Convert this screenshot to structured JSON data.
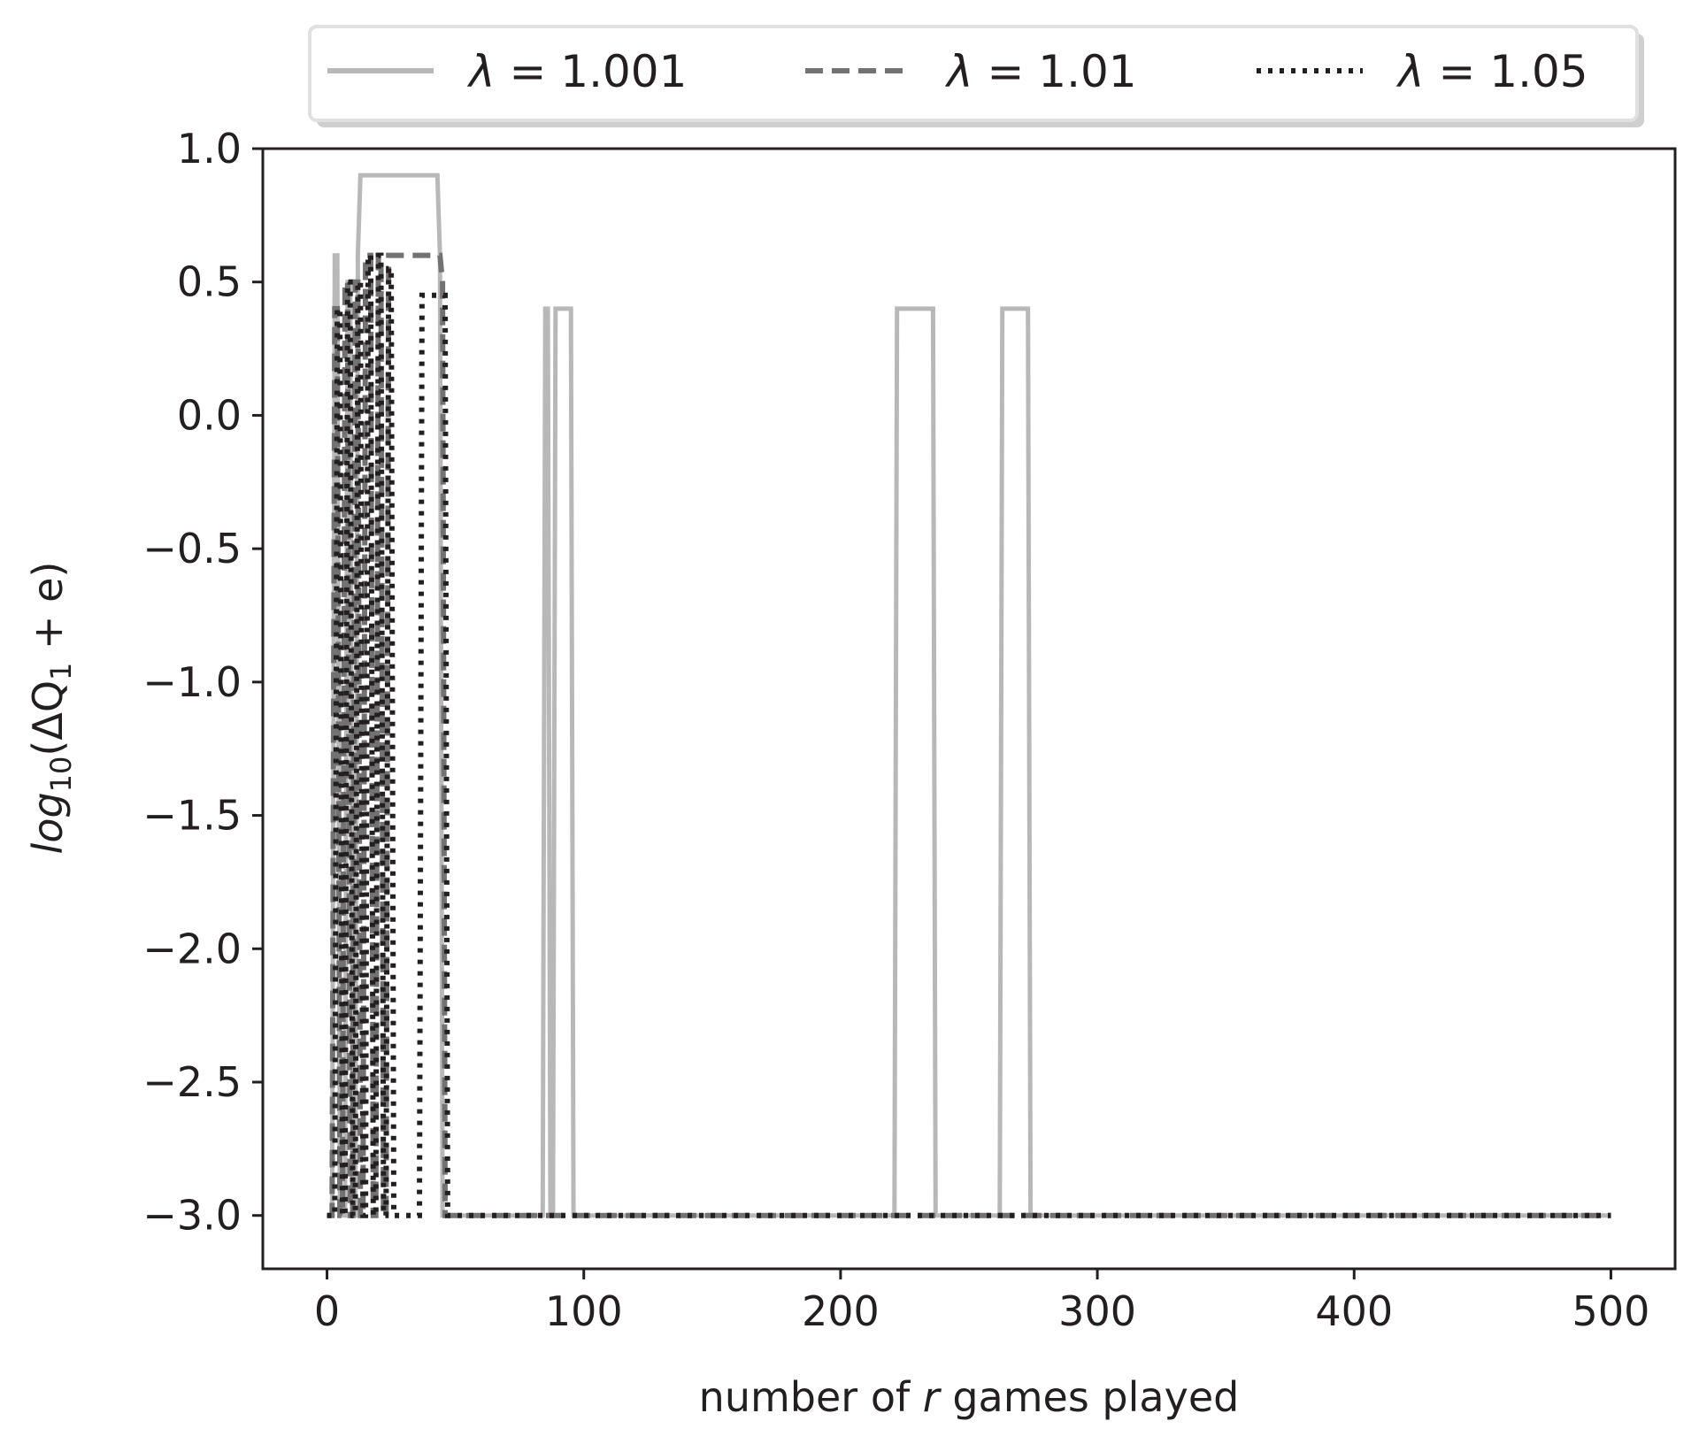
{
  "chart_data": {
    "type": "line",
    "xlabel": {
      "prefix": "number of ",
      "var": "r",
      "suffix": " games played"
    },
    "ylabel": {
      "fn": "log",
      "sub": "10",
      "open": "(ΔQ",
      "sub2": "1",
      "rest": " + e)"
    },
    "xlim": [
      -25,
      525
    ],
    "ylim": [
      -3.2,
      1.0
    ],
    "xticks": [
      0,
      100,
      200,
      300,
      400,
      500
    ],
    "xtick_labels": [
      "0",
      "100",
      "200",
      "300",
      "400",
      "500"
    ],
    "yticks": [
      1.0,
      0.5,
      0.0,
      -0.5,
      -1.0,
      -1.5,
      -2.0,
      -2.5,
      -3.0
    ],
    "ytick_labels": [
      "1.0",
      "0.5",
      "0.0",
      "−0.5",
      "−1.0",
      "−1.5",
      "−2.0",
      "−2.5",
      "−3.0"
    ],
    "grid": false,
    "legend_position": "top, outside plot",
    "series": [
      {
        "name": "λ = 1.001",
        "label_sym": "λ",
        "label_val": " = 1.001",
        "color": "#b8b8b8",
        "style": "solid",
        "x": [
          0,
          2,
          3,
          4,
          5,
          7,
          8,
          9,
          10,
          11,
          12,
          13,
          43,
          44,
          45,
          46,
          84,
          85,
          86,
          87,
          88,
          89,
          90,
          91,
          95,
          96,
          221,
          222,
          236,
          237,
          262,
          263,
          273,
          274,
          500
        ],
        "y": [
          -3.0,
          -3.0,
          0.6,
          0.6,
          -3.0,
          -3.0,
          0.5,
          0.5,
          -3.0,
          -3.0,
          0.6,
          0.9,
          0.9,
          0.6,
          -3.0,
          -3.0,
          -3.0,
          0.4,
          0.4,
          -3.0,
          -3.0,
          0.4,
          0.4,
          0.4,
          0.4,
          -3.0,
          -3.0,
          0.4,
          0.4,
          -3.0,
          -3.0,
          0.4,
          0.4,
          -3.0,
          -3.0
        ]
      },
      {
        "name": "λ = 1.01",
        "label_sym": "λ",
        "label_val": " = 1.01",
        "color": "#727272",
        "style": "dashed",
        "x": [
          0,
          2,
          3,
          4,
          5,
          6,
          7,
          8,
          9,
          10,
          11,
          12,
          13,
          14,
          15,
          16,
          17,
          18,
          19,
          20,
          21,
          22,
          23,
          24,
          25,
          26,
          44,
          45,
          46,
          47,
          500
        ],
        "y": [
          -3.0,
          -3.0,
          0.4,
          0.4,
          -3.0,
          -3.0,
          0.5,
          0.5,
          -3.0,
          -3.0,
          0.5,
          0.5,
          -3.0,
          -3.0,
          0.6,
          0.6,
          0.6,
          -3.0,
          -3.0,
          0.6,
          0.6,
          -3.0,
          -3.0,
          0.6,
          0.6,
          0.6,
          0.6,
          0.5,
          -3.0,
          -3.0,
          -3.0
        ]
      },
      {
        "name": "λ = 1.05",
        "label_sym": "λ",
        "label_val": " = 1.05",
        "color": "#231f20",
        "style": "dotted",
        "x": [
          0,
          3,
          4,
          5,
          6,
          7,
          8,
          9,
          10,
          11,
          12,
          13,
          14,
          15,
          16,
          17,
          18,
          19,
          20,
          21,
          22,
          23,
          24,
          25,
          26,
          27,
          36,
          37,
          38,
          39,
          46,
          47,
          48,
          49,
          500
        ],
        "y": [
          -3.0,
          -3.0,
          0.4,
          0.4,
          -3.0,
          -3.0,
          0.5,
          0.5,
          -3.0,
          -3.0,
          0.5,
          0.5,
          -3.0,
          -3.0,
          0.6,
          0.6,
          -3.0,
          -3.0,
          0.6,
          0.6,
          -3.0,
          -3.0,
          0.55,
          0.55,
          -3.0,
          -3.0,
          -3.0,
          0.45,
          0.45,
          0.45,
          0.45,
          -3.0,
          -3.0,
          -3.0,
          -3.0
        ]
      }
    ]
  }
}
